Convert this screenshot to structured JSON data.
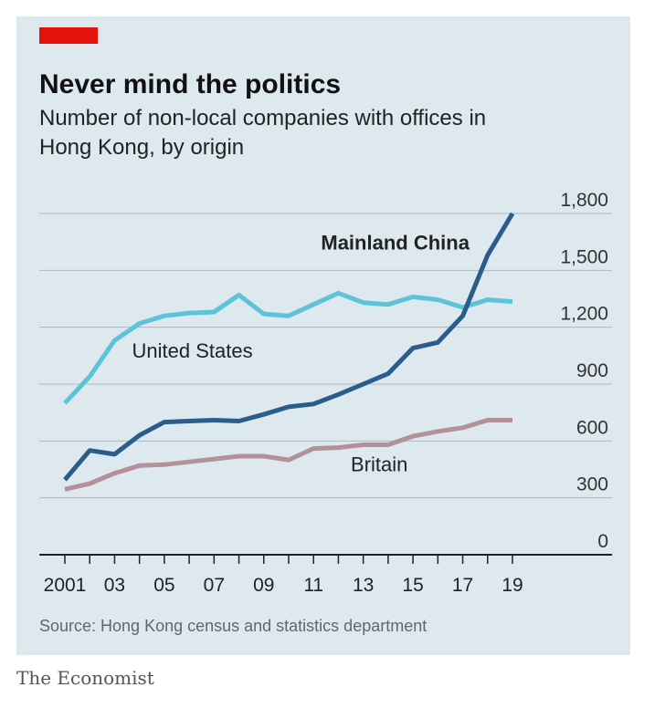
{
  "header": {
    "title": "Never mind the politics",
    "subtitle": "Number of non-local companies with offices in Hong Kong, by origin"
  },
  "footer": {
    "source": "Source: Hong Kong census and statistics department",
    "brand": "The Economist"
  },
  "colors": {
    "background": "#dde8ef",
    "accent": "#e3120b",
    "mainland_china": "#2a5c8c",
    "united_states": "#5dc4d8",
    "britain": "#b4919a",
    "grid": "#aeb8be"
  },
  "chart_data": {
    "type": "line",
    "x": [
      2001,
      2002,
      2003,
      2004,
      2005,
      2006,
      2007,
      2008,
      2009,
      2010,
      2011,
      2012,
      2013,
      2014,
      2015,
      2016,
      2017,
      2018,
      2019
    ],
    "xtick_labels": [
      "2001",
      "03",
      "05",
      "07",
      "09",
      "11",
      "13",
      "15",
      "17",
      "19"
    ],
    "xtick_values": [
      2001,
      2003,
      2005,
      2007,
      2009,
      2011,
      2013,
      2015,
      2017,
      2019
    ],
    "yticks": [
      "0",
      "300",
      "600",
      "900",
      "1,200",
      "1,500",
      "1,800"
    ],
    "ylim": [
      0,
      1800
    ],
    "grid": true,
    "series": [
      {
        "name": "United States",
        "color": "#5dc4d8",
        "values": [
          800,
          940,
          1130,
          1220,
          1260,
          1275,
          1280,
          1370,
          1270,
          1260,
          1320,
          1380,
          1330,
          1320,
          1360,
          1345,
          1305,
          1345,
          1335
        ]
      },
      {
        "name": "Mainland China",
        "color": "#2a5c8c",
        "values": [
          395,
          550,
          530,
          630,
          700,
          705,
          710,
          705,
          740,
          780,
          795,
          845,
          900,
          955,
          1090,
          1120,
          1260,
          1580,
          1800
        ]
      },
      {
        "name": "Britain",
        "color": "#b4919a",
        "values": [
          345,
          375,
          430,
          470,
          475,
          490,
          505,
          520,
          520,
          500,
          560,
          565,
          580,
          580,
          625,
          650,
          670,
          710,
          710
        ]
      }
    ],
    "series_labels": [
      {
        "text": "Mainland China",
        "bold": true,
        "anchor_x": 2011.3,
        "anchor_y": 1610
      },
      {
        "text": "United States",
        "bold": false,
        "anchor_x": 2003.7,
        "anchor_y": 1040
      },
      {
        "text": "Britain",
        "bold": false,
        "anchor_x": 2012.5,
        "anchor_y": 440
      }
    ]
  }
}
